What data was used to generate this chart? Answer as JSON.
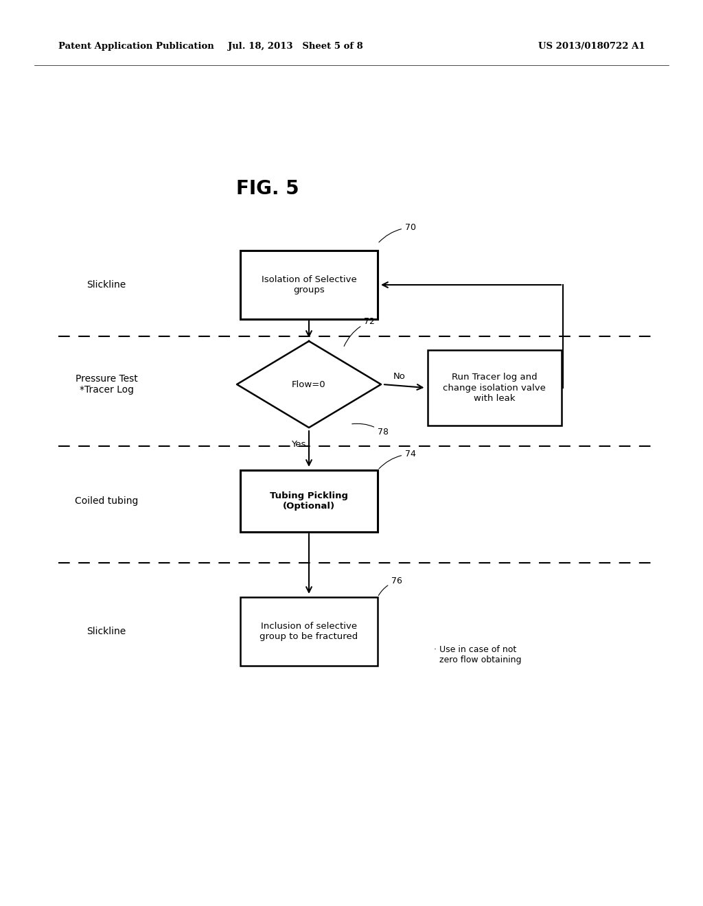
{
  "bg_color": "#ffffff",
  "header_left": "Patent Application Publication",
  "header_center": "Jul. 18, 2013   Sheet 5 of 8",
  "header_right": "US 2013/0180722 A1",
  "fig_title": "FIG. 5",
  "box70_label": "Isolation of Selective\ngroups",
  "diamond_label": "Flow=0",
  "tracer_label": "Run Tracer log and\nchange isolation valve\nwith leak",
  "box74_label": "Tubing Pickling\n(Optional)",
  "box76_label": "Inclusion of selective\ngroup to be fractured",
  "note": "· Use in case of not\n  zero flow obtaining",
  "lane_slickline1": "Slickline",
  "lane_pressure": "Pressure Test\n*Tracer Log",
  "lane_coiled": "Coiled tubing",
  "lane_slickline2": "Slickline",
  "id70": "70",
  "id72": "72",
  "id74": "74",
  "id76": "76",
  "id78": "78",
  "label_no": "No",
  "label_yes": "Yes"
}
